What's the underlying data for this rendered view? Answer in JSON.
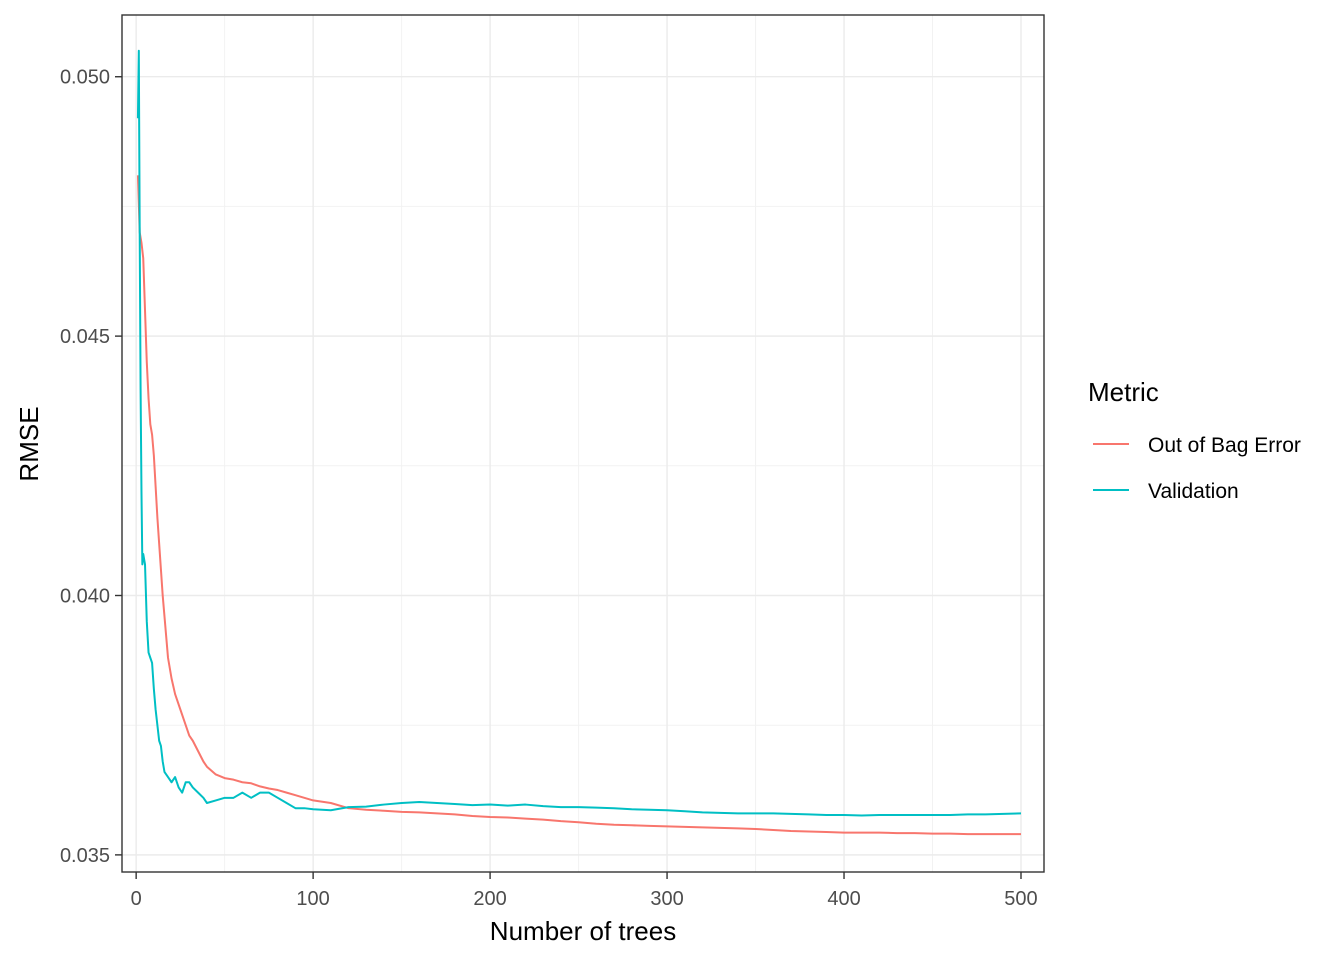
{
  "chart_data": {
    "type": "line",
    "title": "",
    "xlabel": "Number of trees",
    "ylabel": "RMSE",
    "xlim": [
      -8,
      513
    ],
    "ylim": [
      0.03467,
      0.05119
    ],
    "x_ticks": [
      0,
      100,
      200,
      300,
      400,
      500
    ],
    "x_tick_labels": [
      "0",
      "100",
      "200",
      "300",
      "400",
      "500"
    ],
    "x_minor_ticks": [
      50,
      150,
      250,
      350,
      450
    ],
    "y_ticks": [
      0.035,
      0.04,
      0.045,
      0.05
    ],
    "y_tick_labels": [
      "0.035",
      "0.040",
      "0.045",
      "0.050"
    ],
    "y_minor_ticks": [
      0.0375,
      0.0425,
      0.0475
    ],
    "grid": true,
    "legend": {
      "title": "Metric",
      "position": "right"
    },
    "series": [
      {
        "name": "Out of Bag Error",
        "color": "#F8766D",
        "points": [
          [
            1,
            0.0481
          ],
          [
            2,
            0.047
          ],
          [
            3,
            0.0468
          ],
          [
            4,
            0.0465
          ],
          [
            5,
            0.0455
          ],
          [
            6,
            0.0445
          ],
          [
            7,
            0.0438
          ],
          [
            8,
            0.0433
          ],
          [
            9,
            0.0431
          ],
          [
            10,
            0.0427
          ],
          [
            11,
            0.0421
          ],
          [
            12,
            0.0415
          ],
          [
            13,
            0.041
          ],
          [
            14,
            0.0405
          ],
          [
            15,
            0.04
          ],
          [
            16,
            0.0396
          ],
          [
            17,
            0.0392
          ],
          [
            18,
            0.0388
          ],
          [
            20,
            0.0384
          ],
          [
            22,
            0.0381
          ],
          [
            25,
            0.0378
          ],
          [
            28,
            0.0375
          ],
          [
            30,
            0.0373
          ],
          [
            32,
            0.0372
          ],
          [
            35,
            0.037
          ],
          [
            38,
            0.0368
          ],
          [
            40,
            0.0367
          ],
          [
            45,
            0.03655
          ],
          [
            50,
            0.03648
          ],
          [
            55,
            0.03645
          ],
          [
            60,
            0.0364
          ],
          [
            65,
            0.03638
          ],
          [
            70,
            0.03632
          ],
          [
            75,
            0.03628
          ],
          [
            80,
            0.03625
          ],
          [
            85,
            0.0362
          ],
          [
            90,
            0.03615
          ],
          [
            95,
            0.0361
          ],
          [
            100,
            0.03605
          ],
          [
            110,
            0.036
          ],
          [
            120,
            0.0359
          ],
          [
            130,
            0.03587
          ],
          [
            140,
            0.03585
          ],
          [
            150,
            0.03583
          ],
          [
            160,
            0.03582
          ],
          [
            170,
            0.0358
          ],
          [
            180,
            0.03578
          ],
          [
            190,
            0.03575
          ],
          [
            200,
            0.03573
          ],
          [
            210,
            0.03572
          ],
          [
            220,
            0.0357
          ],
          [
            230,
            0.03568
          ],
          [
            240,
            0.03565
          ],
          [
            250,
            0.03563
          ],
          [
            260,
            0.0356
          ],
          [
            270,
            0.03558
          ],
          [
            280,
            0.03557
          ],
          [
            290,
            0.03556
          ],
          [
            300,
            0.03555
          ],
          [
            310,
            0.03554
          ],
          [
            320,
            0.03553
          ],
          [
            330,
            0.03552
          ],
          [
            340,
            0.03551
          ],
          [
            350,
            0.0355
          ],
          [
            360,
            0.03548
          ],
          [
            370,
            0.03546
          ],
          [
            380,
            0.03545
          ],
          [
            390,
            0.03544
          ],
          [
            400,
            0.03543
          ],
          [
            410,
            0.03543
          ],
          [
            420,
            0.03543
          ],
          [
            430,
            0.03542
          ],
          [
            440,
            0.03542
          ],
          [
            450,
            0.03541
          ],
          [
            460,
            0.03541
          ],
          [
            470,
            0.0354
          ],
          [
            480,
            0.0354
          ],
          [
            490,
            0.0354
          ],
          [
            500,
            0.0354
          ]
        ]
      },
      {
        "name": "Validation",
        "color": "#00BFC4",
        "points": [
          [
            1,
            0.0492
          ],
          [
            1.5,
            0.0505
          ],
          [
            2,
            0.047
          ],
          [
            2.5,
            0.044
          ],
          [
            3,
            0.042
          ],
          [
            3.5,
            0.0406
          ],
          [
            4,
            0.0408
          ],
          [
            5,
            0.0406
          ],
          [
            6,
            0.0395
          ],
          [
            7,
            0.0389
          ],
          [
            8,
            0.0388
          ],
          [
            9,
            0.0387
          ],
          [
            10,
            0.0382
          ],
          [
            11,
            0.0378
          ],
          [
            12,
            0.0375
          ],
          [
            13,
            0.0372
          ],
          [
            14,
            0.0371
          ],
          [
            15,
            0.0368
          ],
          [
            16,
            0.0366
          ],
          [
            18,
            0.0365
          ],
          [
            20,
            0.0364
          ],
          [
            22,
            0.0365
          ],
          [
            24,
            0.0363
          ],
          [
            26,
            0.0362
          ],
          [
            28,
            0.0364
          ],
          [
            30,
            0.0364
          ],
          [
            32,
            0.0363
          ],
          [
            35,
            0.0362
          ],
          [
            38,
            0.0361
          ],
          [
            40,
            0.036
          ],
          [
            45,
            0.03605
          ],
          [
            50,
            0.0361
          ],
          [
            55,
            0.0361
          ],
          [
            60,
            0.0362
          ],
          [
            65,
            0.0361
          ],
          [
            70,
            0.0362
          ],
          [
            75,
            0.0362
          ],
          [
            80,
            0.0361
          ],
          [
            85,
            0.036
          ],
          [
            90,
            0.0359
          ],
          [
            95,
            0.0359
          ],
          [
            100,
            0.03588
          ],
          [
            110,
            0.03586
          ],
          [
            120,
            0.03592
          ],
          [
            130,
            0.03593
          ],
          [
            140,
            0.03597
          ],
          [
            150,
            0.036
          ],
          [
            160,
            0.03602
          ],
          [
            170,
            0.036
          ],
          [
            180,
            0.03598
          ],
          [
            190,
            0.03596
          ],
          [
            200,
            0.03597
          ],
          [
            210,
            0.03595
          ],
          [
            220,
            0.03597
          ],
          [
            230,
            0.03594
          ],
          [
            240,
            0.03592
          ],
          [
            250,
            0.03592
          ],
          [
            260,
            0.03591
          ],
          [
            270,
            0.0359
          ],
          [
            280,
            0.03588
          ],
          [
            290,
            0.03587
          ],
          [
            300,
            0.03586
          ],
          [
            310,
            0.03584
          ],
          [
            320,
            0.03582
          ],
          [
            330,
            0.03581
          ],
          [
            340,
            0.0358
          ],
          [
            350,
            0.0358
          ],
          [
            360,
            0.0358
          ],
          [
            370,
            0.03579
          ],
          [
            380,
            0.03578
          ],
          [
            390,
            0.03577
          ],
          [
            400,
            0.03577
          ],
          [
            410,
            0.03576
          ],
          [
            420,
            0.03577
          ],
          [
            430,
            0.03577
          ],
          [
            440,
            0.03577
          ],
          [
            450,
            0.03577
          ],
          [
            460,
            0.03577
          ],
          [
            470,
            0.03578
          ],
          [
            480,
            0.03578
          ],
          [
            490,
            0.03579
          ],
          [
            500,
            0.0358
          ]
        ]
      }
    ]
  }
}
